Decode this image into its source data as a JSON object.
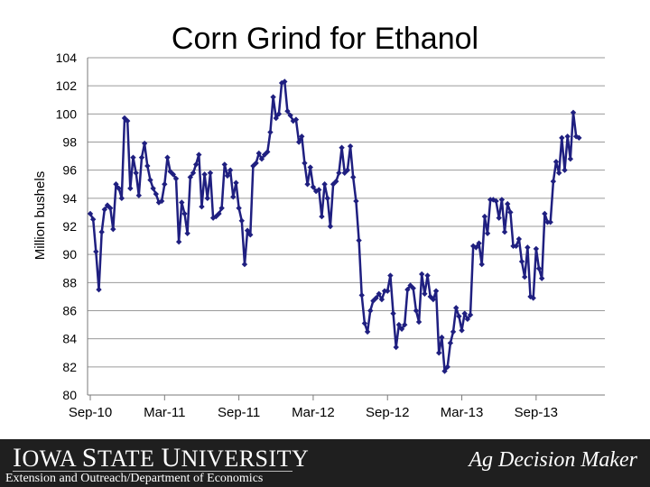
{
  "chart_data": {
    "type": "line",
    "title": "Corn Grind for Ethanol",
    "ylabel": "Million bushels",
    "xlabel": "",
    "ylim": [
      80,
      104
    ],
    "yticks": [
      80,
      82,
      84,
      86,
      88,
      90,
      92,
      94,
      96,
      98,
      100,
      102,
      104
    ],
    "xticks": [
      {
        "label": "Sep-10",
        "week": 0
      },
      {
        "label": "Mar-11",
        "week": 26
      },
      {
        "label": "Sep-11",
        "week": 52
      },
      {
        "label": "Mar-12",
        "week": 78
      },
      {
        "label": "Sep-12",
        "week": 104
      },
      {
        "label": "Mar-13",
        "week": 130
      },
      {
        "label": "Sep-13",
        "week": 156
      }
    ],
    "grid": "horizontal",
    "series_color": "#1f1f80",
    "series": [
      {
        "values": [
          92.9,
          92.5,
          90.2,
          87.5,
          91.6,
          93.2,
          93.5,
          93.3,
          91.8,
          95.0,
          94.7,
          94.0,
          99.7,
          99.5,
          94.7,
          96.9,
          95.8,
          94.2,
          96.9,
          97.9,
          96.3,
          95.3,
          94.7,
          94.3,
          93.7,
          93.8,
          95.0,
          96.9,
          95.9,
          95.7,
          95.4,
          90.9,
          93.7,
          92.9,
          91.5,
          95.5,
          95.8,
          96.4,
          97.1,
          93.4,
          95.7,
          94.0,
          95.8,
          92.6,
          92.7,
          92.9,
          93.3,
          96.4,
          95.6,
          96.0,
          94.1,
          95.1,
          93.3,
          92.4,
          89.3,
          91.7,
          91.4,
          96.3,
          96.5,
          97.2,
          96.8,
          97.1,
          97.3,
          98.7,
          101.2,
          99.7,
          100.0,
          102.2,
          102.3,
          100.2,
          99.9,
          99.5,
          99.6,
          98.0,
          98.4,
          96.5,
          95.0,
          96.2,
          94.8,
          94.5,
          94.6,
          92.7,
          95.0,
          94.0,
          92.0,
          95.0,
          95.2,
          95.8,
          97.6,
          95.8,
          96.0,
          97.7,
          95.5,
          93.8,
          91.0,
          87.1,
          85.1,
          84.5,
          86.0,
          86.7,
          86.9,
          87.2,
          86.8,
          87.4,
          87.4,
          88.5,
          85.8,
          83.4,
          85.0,
          84.7,
          85.0,
          87.5,
          87.8,
          87.6,
          86.0,
          85.2,
          88.6,
          87.2,
          88.5,
          87.0,
          86.8,
          87.4,
          83.0,
          84.1,
          81.7,
          82.0,
          83.7,
          84.5,
          86.2,
          85.6,
          84.6,
          85.8,
          85.4,
          85.7,
          90.6,
          90.5,
          90.8,
          89.3,
          92.7,
          91.5,
          93.9,
          93.9,
          93.8,
          92.6,
          93.9,
          91.6,
          93.6,
          93.0,
          90.6,
          90.6,
          91.1,
          89.5,
          88.4,
          90.5,
          87.0,
          86.9,
          90.4,
          89.0,
          88.3,
          92.9,
          92.3,
          92.3,
          95.2,
          96.6,
          95.8,
          98.3,
          96.0,
          98.4,
          96.8,
          100.1,
          98.4,
          98.3
        ]
      }
    ]
  },
  "footer": {
    "university": "Iowa State University",
    "university_first_cap": "I",
    "university_rest1": "OWA ",
    "university_cap2": "S",
    "university_rest2": "TATE ",
    "university_cap3": "U",
    "university_rest3": "NIVERSITY",
    "department": "Extension and Outreach/Department of Economics",
    "brand": "Ag Decision Maker"
  }
}
